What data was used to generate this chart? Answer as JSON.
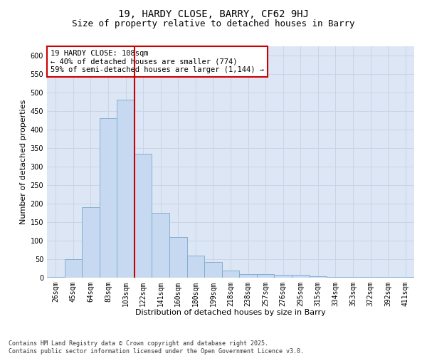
{
  "title_line1": "19, HARDY CLOSE, BARRY, CF62 9HJ",
  "title_line2": "Size of property relative to detached houses in Barry",
  "xlabel": "Distribution of detached houses by size in Barry",
  "ylabel": "Number of detached properties",
  "categories": [
    "26sqm",
    "45sqm",
    "64sqm",
    "83sqm",
    "103sqm",
    "122sqm",
    "141sqm",
    "160sqm",
    "180sqm",
    "199sqm",
    "218sqm",
    "238sqm",
    "257sqm",
    "276sqm",
    "295sqm",
    "315sqm",
    "334sqm",
    "353sqm",
    "372sqm",
    "392sqm",
    "411sqm"
  ],
  "values": [
    2,
    50,
    190,
    430,
    480,
    335,
    175,
    110,
    60,
    42,
    20,
    10,
    10,
    8,
    7,
    3,
    2,
    2,
    1,
    2,
    1
  ],
  "bar_color": "#c6d9f0",
  "bar_edge_color": "#7aaacc",
  "vline_x_index": 4,
  "vline_color": "#cc0000",
  "annotation_text": "19 HARDY CLOSE: 108sqm\n← 40% of detached houses are smaller (774)\n59% of semi-detached houses are larger (1,144) →",
  "annotation_box_color": "#ffffff",
  "annotation_box_edge_color": "#cc0000",
  "ylim": [
    0,
    625
  ],
  "yticks": [
    0,
    50,
    100,
    150,
    200,
    250,
    300,
    350,
    400,
    450,
    500,
    550,
    600
  ],
  "grid_color": "#c8d4e8",
  "bg_color": "#dce6f5",
  "footer_text": "Contains HM Land Registry data © Crown copyright and database right 2025.\nContains public sector information licensed under the Open Government Licence v3.0.",
  "title_fontsize": 10,
  "subtitle_fontsize": 9,
  "axis_label_fontsize": 8,
  "tick_fontsize": 7,
  "annotation_fontsize": 7.5,
  "footer_fontsize": 6
}
